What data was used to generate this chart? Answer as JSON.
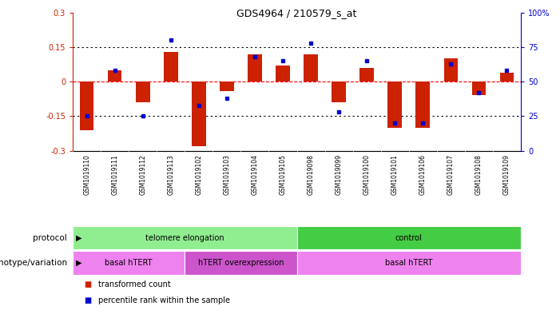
{
  "title": "GDS4964 / 210579_s_at",
  "samples": [
    "GSM1019110",
    "GSM1019111",
    "GSM1019112",
    "GSM1019113",
    "GSM1019102",
    "GSM1019103",
    "GSM1019104",
    "GSM1019105",
    "GSM1019098",
    "GSM1019099",
    "GSM1019100",
    "GSM1019101",
    "GSM1019106",
    "GSM1019107",
    "GSM1019108",
    "GSM1019109"
  ],
  "transformed_count": [
    -0.21,
    0.05,
    -0.09,
    0.13,
    -0.28,
    -0.04,
    0.12,
    0.07,
    0.12,
    -0.09,
    0.06,
    -0.2,
    -0.2,
    0.1,
    -0.06,
    0.04
  ],
  "percentile_rank": [
    25,
    58,
    25,
    80,
    33,
    38,
    68,
    65,
    78,
    28,
    65,
    20,
    20,
    63,
    42,
    58
  ],
  "ylim_left": [
    -0.3,
    0.3
  ],
  "ylim_right": [
    0,
    100
  ],
  "yticks_left": [
    -0.3,
    -0.15,
    0.0,
    0.15,
    0.3
  ],
  "yticks_right": [
    0,
    25,
    50,
    75,
    100
  ],
  "ytick_labels_left": [
    "-0.3",
    "-0.15",
    "0",
    "0.15",
    "0.3"
  ],
  "ytick_labels_right": [
    "0",
    "25",
    "50",
    "75",
    "100%"
  ],
  "hline_y": [
    -0.15,
    0.0,
    0.15
  ],
  "hline_styles": [
    "dotted",
    "dashed",
    "dotted"
  ],
  "hline_colors": [
    "black",
    "red",
    "black"
  ],
  "bar_color": "#cc2200",
  "dot_color": "#0000cc",
  "protocol_groups": [
    {
      "label": "telomere elongation",
      "start": 0,
      "end": 7,
      "color": "#90ee90"
    },
    {
      "label": "control",
      "start": 8,
      "end": 15,
      "color": "#44cc44"
    }
  ],
  "genotype_groups": [
    {
      "label": "basal hTERT",
      "start": 0,
      "end": 3,
      "color": "#ee82ee"
    },
    {
      "label": "hTERT overexpression",
      "start": 4,
      "end": 7,
      "color": "#cc55cc"
    },
    {
      "label": "basal hTERT",
      "start": 8,
      "end": 15,
      "color": "#ee82ee"
    }
  ],
  "protocol_label": "protocol",
  "genotype_label": "genotype/variation",
  "legend_items": [
    {
      "label": "transformed count",
      "color": "#cc2200"
    },
    {
      "label": "percentile rank within the sample",
      "color": "#0000cc"
    }
  ],
  "bg_color": "#ffffff",
  "plot_bg_color": "#ffffff",
  "tick_color_left": "#cc2200",
  "tick_color_right": "#0000cc",
  "label_row_color": "#cccccc",
  "border_color": "#888888"
}
